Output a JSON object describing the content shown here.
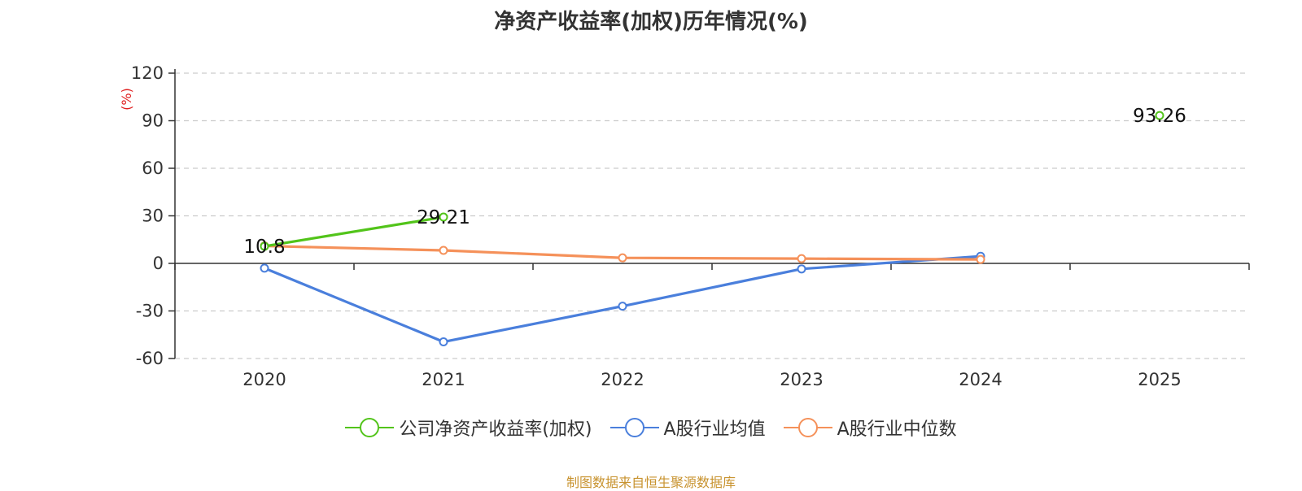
{
  "chart_data": {
    "type": "line",
    "title": "净资产收益率(加权)历年情况(%)",
    "ylabel": "(%)",
    "xlabel": "",
    "categories": [
      "2020",
      "2021",
      "2022",
      "2023",
      "2024",
      "2025"
    ],
    "ylim": [
      -60,
      120
    ],
    "yticks": [
      120,
      90,
      60,
      30,
      0,
      -30,
      -60
    ],
    "grid": true,
    "legend_position": "bottom",
    "series": [
      {
        "name": "公司净资产收益率(加权)",
        "color": "#52c41a",
        "values": [
          10.8,
          29.21,
          null,
          null,
          null,
          93.26
        ],
        "labels": [
          "10.8",
          "29.21",
          null,
          null,
          null,
          "93.26"
        ]
      },
      {
        "name": "A股行业均值",
        "color": "#4a7fdc",
        "values": [
          -3,
          -49.5,
          -27,
          -3.5,
          4.5,
          null
        ]
      },
      {
        "name": "A股行业中位数",
        "color": "#f5915a",
        "values": [
          11,
          8.2,
          3.5,
          3,
          2.5,
          null
        ]
      }
    ]
  },
  "footer": "制图数据来自恒生聚源数据库"
}
